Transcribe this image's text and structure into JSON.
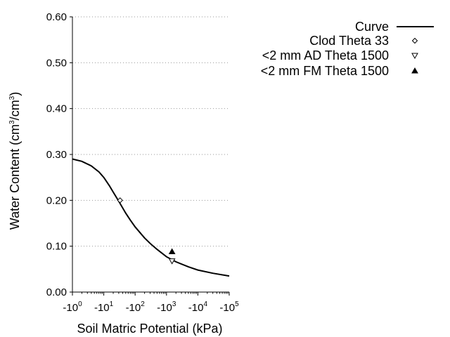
{
  "chart_data": {
    "type": "scatter",
    "xlabel": "Soil Matric Potential (kPa)",
    "ylabel_parts": {
      "main": "Water Content (cm",
      "sup1": "3",
      "mid": "/cm",
      "sup2": "3",
      "end": ")"
    },
    "x_scale": "log",
    "xlim": [
      1,
      100000
    ],
    "ylim": [
      0,
      0.6
    ],
    "x_ticks": [
      {
        "base": "-10",
        "exp": "0"
      },
      {
        "base": "-10",
        "exp": "1"
      },
      {
        "base": "-10",
        "exp": "2"
      },
      {
        "base": "-10",
        "exp": "3"
      },
      {
        "base": "-10",
        "exp": "4"
      },
      {
        "base": "-10",
        "exp": "5"
      }
    ],
    "y_ticks": [
      "0.00",
      "0.10",
      "0.20",
      "0.30",
      "0.40",
      "0.50",
      "0.60"
    ],
    "grid": "horizontal dotted",
    "legend_position": "right",
    "series": [
      {
        "name": "Curve",
        "type": "line",
        "color": "#000000",
        "x": [
          1,
          2,
          4,
          7,
          10,
          15,
          20,
          30,
          50,
          70,
          100,
          200,
          300,
          500,
          1000,
          2000,
          5000,
          10000,
          30000,
          100000
        ],
        "y": [
          0.29,
          0.285,
          0.275,
          0.262,
          0.25,
          0.232,
          0.218,
          0.198,
          0.172,
          0.157,
          0.142,
          0.118,
          0.106,
          0.093,
          0.077,
          0.066,
          0.055,
          0.048,
          0.041,
          0.035
        ]
      },
      {
        "name": "Clod Theta 33",
        "type": "scatter",
        "marker": "diamond-open",
        "x": [
          33
        ],
        "y": [
          0.2
        ]
      },
      {
        "name": "<2 mm AD Theta 1500",
        "type": "scatter",
        "marker": "triangle-down-open",
        "x": [
          1500
        ],
        "y": [
          0.068
        ]
      },
      {
        "name": "<2 mm FM Theta 1500",
        "type": "scatter",
        "marker": "triangle-up-filled",
        "x": [
          1500
        ],
        "y": [
          0.088
        ]
      }
    ]
  }
}
